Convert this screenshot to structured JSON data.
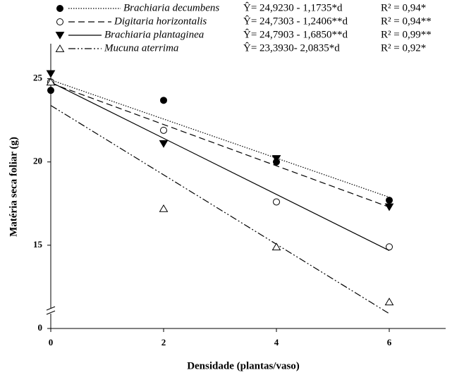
{
  "chart_data": {
    "type": "scatter",
    "x_label": "Densidade (plantas/vaso)",
    "y_label": "Matéria seca foliar (g)",
    "x": [
      0,
      2,
      4,
      6
    ],
    "xlim": [
      0,
      7
    ],
    "xticks": [
      0,
      2,
      4,
      6
    ],
    "ylim": [
      0,
      27.1
    ],
    "yticks": [
      0,
      15,
      20,
      25
    ],
    "axis_break": [
      0,
      10
    ],
    "series": [
      {
        "name": "Brachiaria decumbens",
        "color": "#000000",
        "marker": "filled-circle",
        "line_style": "dotted",
        "values": [
          24.3,
          23.7,
          20.0,
          17.7
        ],
        "equation": "Ŷ= 24,9230 - 1,1735*d",
        "r2_label": "R² = 0,94*",
        "fit": {
          "intercept": 24.923,
          "slope": -1.1735
        }
      },
      {
        "name": "Digitaria horizontalis",
        "color": "#000000",
        "marker": "open-circle",
        "line_style": "dashed",
        "values": [
          24.8,
          21.9,
          17.6,
          14.9
        ],
        "equation": "Ŷ= 24,7303 - 1,2406**d",
        "r2_label": "R² = 0,94**",
        "fit": {
          "intercept": 24.7303,
          "slope": -1.2406
        }
      },
      {
        "name": "Brachiaria plantaginea",
        "color": "#000000",
        "marker": "filled-triangle-down",
        "line_style": "solid",
        "values": [
          25.3,
          21.1,
          20.2,
          17.3
        ],
        "equation": "Ŷ= 24,7903 - 1,6850**d",
        "r2_label": "R² = 0,99**",
        "fit": {
          "intercept": 24.7903,
          "slope": -1.685
        }
      },
      {
        "name": "Mucuna aterrima",
        "color": "#000000",
        "marker": "open-triangle-up",
        "line_style": "dash-dot-dot",
        "values": [
          24.8,
          17.2,
          14.9,
          11.6
        ],
        "equation": "Ŷ= 23,3930- 2,0835*d",
        "r2_label": "R² = 0,92*",
        "fit": {
          "intercept": 23.393,
          "slope": -2.0835
        }
      }
    ]
  }
}
